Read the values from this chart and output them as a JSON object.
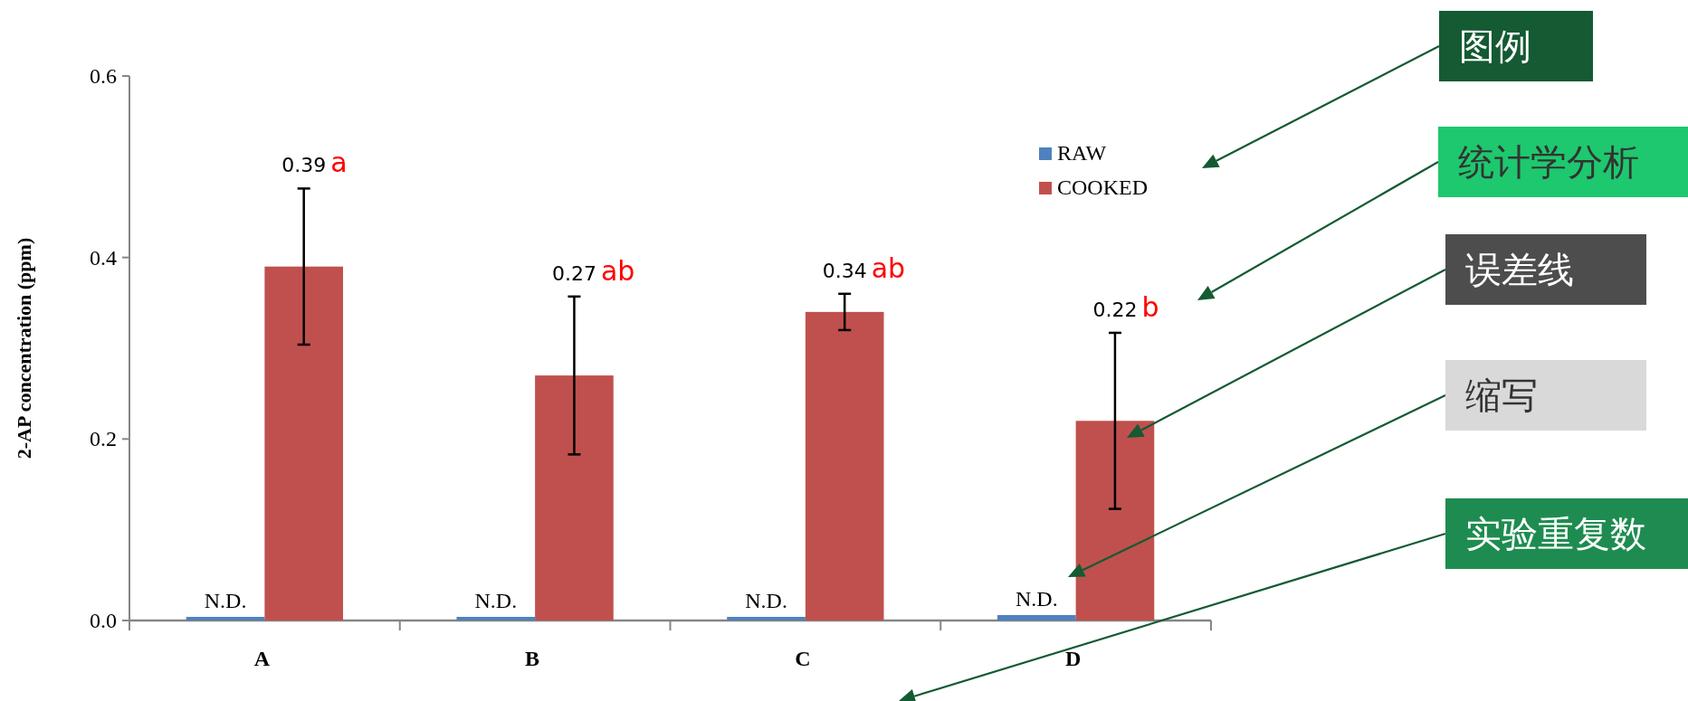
{
  "chart_data": {
    "type": "bar",
    "categories": [
      "A",
      "B",
      "C",
      "D"
    ],
    "ylabel": "2-AP concentration (ppm)",
    "ylim": [
      0,
      0.6
    ],
    "yticks": [
      {
        "value": 0,
        "label": "0.0"
      },
      {
        "value": 0.2,
        "label": "0.2"
      },
      {
        "value": 0.4,
        "label": "0.4"
      },
      {
        "value": 0.6,
        "label": "0.6"
      }
    ],
    "legend": "top right",
    "series": [
      {
        "name": "RAW",
        "color": "#4f81bd",
        "values": [
          0.004,
          0.004,
          0.004,
          0.006
        ],
        "value_labels": [
          "N.D.",
          "N.D.",
          "N.D.",
          "N.D."
        ]
      },
      {
        "name": "COOKED",
        "color": "#c0504d",
        "values": [
          0.39,
          0.27,
          0.34,
          0.22
        ],
        "errors": [
          0.086,
          0.087,
          0.02,
          0.097
        ]
      }
    ],
    "annotations": [
      "0.39",
      "a",
      "0.27",
      "ab",
      "0.34",
      "ab",
      "0.22",
      "b",
      "图例",
      "统计学分析",
      "误差线",
      "缩写",
      "实验重复数"
    ]
  }
}
